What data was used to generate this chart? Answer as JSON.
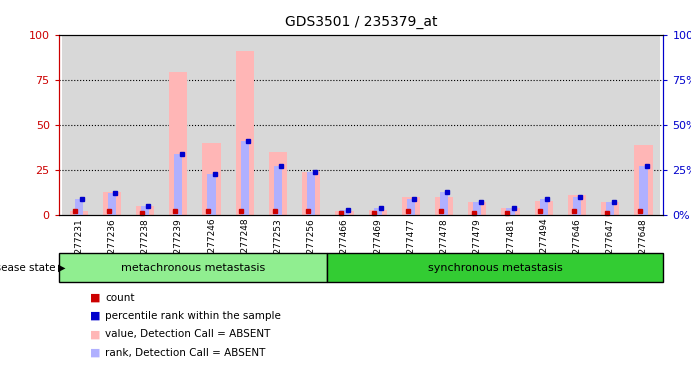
{
  "title": "GDS3501 / 235379_at",
  "samples": [
    "GSM277231",
    "GSM277236",
    "GSM277238",
    "GSM277239",
    "GSM277246",
    "GSM277248",
    "GSM277253",
    "GSM277256",
    "GSM277466",
    "GSM277469",
    "GSM277477",
    "GSM277478",
    "GSM277479",
    "GSM277481",
    "GSM277494",
    "GSM277646",
    "GSM277647",
    "GSM277648"
  ],
  "group1_label": "metachronous metastasis",
  "group2_label": "synchronous metastasis",
  "group1_count": 8,
  "group2_count": 10,
  "pink_bars": [
    2,
    13,
    5,
    79,
    40,
    91,
    35,
    24,
    2,
    3,
    10,
    10,
    7,
    4,
    8,
    11,
    7,
    39
  ],
  "blue_bars": [
    9,
    12,
    5,
    34,
    23,
    41,
    27,
    24,
    3,
    4,
    9,
    13,
    7,
    4,
    9,
    10,
    7,
    27
  ],
  "red_vals": [
    2,
    2,
    1,
    2,
    2,
    2,
    2,
    2,
    1,
    1,
    2,
    2,
    1,
    1,
    2,
    2,
    1,
    2
  ],
  "blue_vals": [
    9,
    12,
    5,
    34,
    23,
    41,
    27,
    24,
    3,
    4,
    9,
    13,
    7,
    4,
    9,
    10,
    7,
    27
  ],
  "ylim": [
    0,
    100
  ],
  "yticks": [
    0,
    25,
    50,
    75,
    100
  ],
  "bg_color": "#d8d8d8",
  "pink_color": "#ffb6b6",
  "blue_bar_color": "#b0b0ff",
  "red_color": "#cc0000",
  "blue_color": "#0000cc",
  "group1_color": "#90ee90",
  "group2_color": "#33cc33",
  "white": "#ffffff"
}
